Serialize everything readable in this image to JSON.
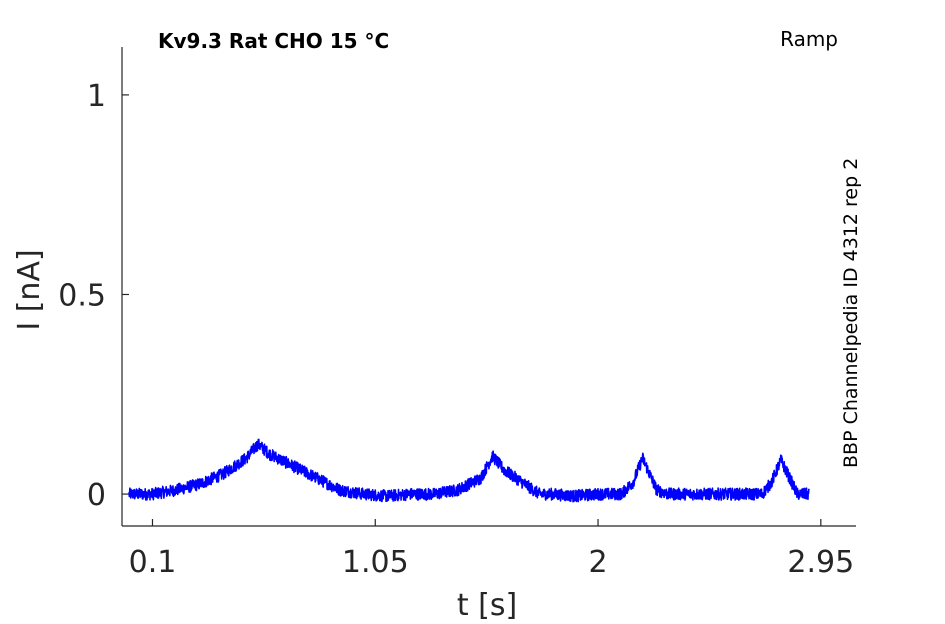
{
  "chart_data": {
    "type": "line",
    "title": "Kv9.3  Rat  CHO  15 °C",
    "corner_label": "Ramp",
    "side_label": "BBP Channelpedia ID 4312 rep 2",
    "xlabel": "t [s]",
    "ylabel": "I [nA]",
    "xlim": [
      -0.03,
      3.1
    ],
    "ylim": [
      -0.08,
      1.12
    ],
    "xticks": [
      0.1,
      1.05,
      2,
      2.95
    ],
    "xtick_labels": [
      "0.1",
      "1.05",
      "2",
      "2.95"
    ],
    "yticks": [
      0,
      0.5,
      1
    ],
    "ytick_labels": [
      "0",
      "0.5",
      "1"
    ],
    "grid": false,
    "series": [
      {
        "color": "#0000ff",
        "x": [
          0.0,
          0.1,
          0.2,
          0.3,
          0.4,
          0.5,
          0.55,
          0.6,
          0.7,
          0.8,
          0.9,
          1.0,
          1.1,
          1.2,
          1.3,
          1.4,
          1.5,
          1.55,
          1.6,
          1.7,
          1.75,
          1.8,
          1.9,
          2.0,
          2.1,
          2.15,
          2.19,
          2.25,
          2.3,
          2.4,
          2.5,
          2.6,
          2.7,
          2.74,
          2.78,
          2.85,
          2.9
        ],
        "y": [
          0.0,
          0.0,
          0.01,
          0.025,
          0.05,
          0.09,
          0.125,
          0.1,
          0.07,
          0.04,
          0.01,
          0.0,
          -0.005,
          0.0,
          0.0,
          0.01,
          0.04,
          0.095,
          0.06,
          0.02,
          0.0,
          0.0,
          -0.005,
          0.0,
          0.0,
          0.03,
          0.09,
          0.01,
          0.0,
          0.0,
          0.0,
          0.0,
          0.0,
          0.03,
          0.085,
          0.0,
          0.0
        ]
      }
    ]
  }
}
